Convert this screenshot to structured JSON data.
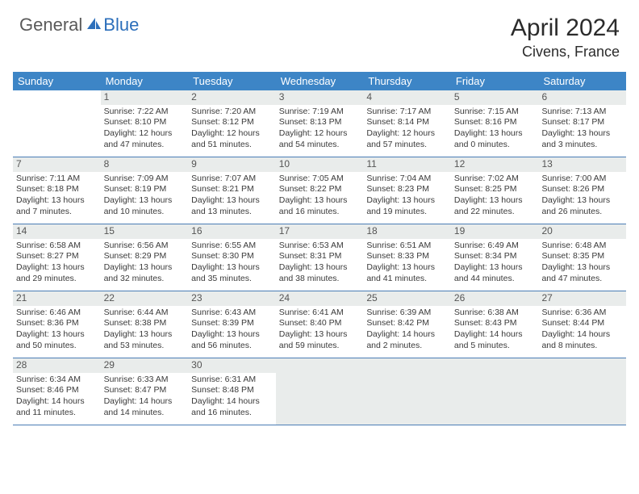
{
  "brand": {
    "part1": "General",
    "part2": "Blue"
  },
  "title": "April 2024",
  "location": "Civens, France",
  "colors": {
    "header_bg": "#3d85c6",
    "header_text": "#ffffff",
    "daynum_bg": "#e9eceb",
    "border": "#4a7db5",
    "text": "#3a3a3a",
    "brand_gray": "#5a5a5a",
    "brand_blue": "#2c6fbb"
  },
  "dow": [
    "Sunday",
    "Monday",
    "Tuesday",
    "Wednesday",
    "Thursday",
    "Friday",
    "Saturday"
  ],
  "weeks": [
    [
      null,
      {
        "n": "1",
        "sr": "Sunrise: 7:22 AM",
        "ss": "Sunset: 8:10 PM",
        "dl": "Daylight: 12 hours and 47 minutes."
      },
      {
        "n": "2",
        "sr": "Sunrise: 7:20 AM",
        "ss": "Sunset: 8:12 PM",
        "dl": "Daylight: 12 hours and 51 minutes."
      },
      {
        "n": "3",
        "sr": "Sunrise: 7:19 AM",
        "ss": "Sunset: 8:13 PM",
        "dl": "Daylight: 12 hours and 54 minutes."
      },
      {
        "n": "4",
        "sr": "Sunrise: 7:17 AM",
        "ss": "Sunset: 8:14 PM",
        "dl": "Daylight: 12 hours and 57 minutes."
      },
      {
        "n": "5",
        "sr": "Sunrise: 7:15 AM",
        "ss": "Sunset: 8:16 PM",
        "dl": "Daylight: 13 hours and 0 minutes."
      },
      {
        "n": "6",
        "sr": "Sunrise: 7:13 AM",
        "ss": "Sunset: 8:17 PM",
        "dl": "Daylight: 13 hours and 3 minutes."
      }
    ],
    [
      {
        "n": "7",
        "sr": "Sunrise: 7:11 AM",
        "ss": "Sunset: 8:18 PM",
        "dl": "Daylight: 13 hours and 7 minutes."
      },
      {
        "n": "8",
        "sr": "Sunrise: 7:09 AM",
        "ss": "Sunset: 8:19 PM",
        "dl": "Daylight: 13 hours and 10 minutes."
      },
      {
        "n": "9",
        "sr": "Sunrise: 7:07 AM",
        "ss": "Sunset: 8:21 PM",
        "dl": "Daylight: 13 hours and 13 minutes."
      },
      {
        "n": "10",
        "sr": "Sunrise: 7:05 AM",
        "ss": "Sunset: 8:22 PM",
        "dl": "Daylight: 13 hours and 16 minutes."
      },
      {
        "n": "11",
        "sr": "Sunrise: 7:04 AM",
        "ss": "Sunset: 8:23 PM",
        "dl": "Daylight: 13 hours and 19 minutes."
      },
      {
        "n": "12",
        "sr": "Sunrise: 7:02 AM",
        "ss": "Sunset: 8:25 PM",
        "dl": "Daylight: 13 hours and 22 minutes."
      },
      {
        "n": "13",
        "sr": "Sunrise: 7:00 AM",
        "ss": "Sunset: 8:26 PM",
        "dl": "Daylight: 13 hours and 26 minutes."
      }
    ],
    [
      {
        "n": "14",
        "sr": "Sunrise: 6:58 AM",
        "ss": "Sunset: 8:27 PM",
        "dl": "Daylight: 13 hours and 29 minutes."
      },
      {
        "n": "15",
        "sr": "Sunrise: 6:56 AM",
        "ss": "Sunset: 8:29 PM",
        "dl": "Daylight: 13 hours and 32 minutes."
      },
      {
        "n": "16",
        "sr": "Sunrise: 6:55 AM",
        "ss": "Sunset: 8:30 PM",
        "dl": "Daylight: 13 hours and 35 minutes."
      },
      {
        "n": "17",
        "sr": "Sunrise: 6:53 AM",
        "ss": "Sunset: 8:31 PM",
        "dl": "Daylight: 13 hours and 38 minutes."
      },
      {
        "n": "18",
        "sr": "Sunrise: 6:51 AM",
        "ss": "Sunset: 8:33 PM",
        "dl": "Daylight: 13 hours and 41 minutes."
      },
      {
        "n": "19",
        "sr": "Sunrise: 6:49 AM",
        "ss": "Sunset: 8:34 PM",
        "dl": "Daylight: 13 hours and 44 minutes."
      },
      {
        "n": "20",
        "sr": "Sunrise: 6:48 AM",
        "ss": "Sunset: 8:35 PM",
        "dl": "Daylight: 13 hours and 47 minutes."
      }
    ],
    [
      {
        "n": "21",
        "sr": "Sunrise: 6:46 AM",
        "ss": "Sunset: 8:36 PM",
        "dl": "Daylight: 13 hours and 50 minutes."
      },
      {
        "n": "22",
        "sr": "Sunrise: 6:44 AM",
        "ss": "Sunset: 8:38 PM",
        "dl": "Daylight: 13 hours and 53 minutes."
      },
      {
        "n": "23",
        "sr": "Sunrise: 6:43 AM",
        "ss": "Sunset: 8:39 PM",
        "dl": "Daylight: 13 hours and 56 minutes."
      },
      {
        "n": "24",
        "sr": "Sunrise: 6:41 AM",
        "ss": "Sunset: 8:40 PM",
        "dl": "Daylight: 13 hours and 59 minutes."
      },
      {
        "n": "25",
        "sr": "Sunrise: 6:39 AM",
        "ss": "Sunset: 8:42 PM",
        "dl": "Daylight: 14 hours and 2 minutes."
      },
      {
        "n": "26",
        "sr": "Sunrise: 6:38 AM",
        "ss": "Sunset: 8:43 PM",
        "dl": "Daylight: 14 hours and 5 minutes."
      },
      {
        "n": "27",
        "sr": "Sunrise: 6:36 AM",
        "ss": "Sunset: 8:44 PM",
        "dl": "Daylight: 14 hours and 8 minutes."
      }
    ],
    [
      {
        "n": "28",
        "sr": "Sunrise: 6:34 AM",
        "ss": "Sunset: 8:46 PM",
        "dl": "Daylight: 14 hours and 11 minutes."
      },
      {
        "n": "29",
        "sr": "Sunrise: 6:33 AM",
        "ss": "Sunset: 8:47 PM",
        "dl": "Daylight: 14 hours and 14 minutes."
      },
      {
        "n": "30",
        "sr": "Sunrise: 6:31 AM",
        "ss": "Sunset: 8:48 PM",
        "dl": "Daylight: 14 hours and 16 minutes."
      },
      {
        "trail": true
      },
      {
        "trail": true
      },
      {
        "trail": true
      },
      {
        "trail": true
      }
    ]
  ]
}
